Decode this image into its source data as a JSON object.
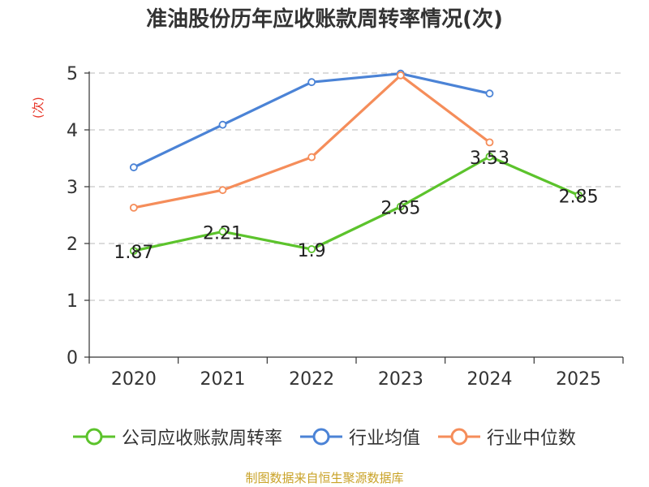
{
  "chart_data": {
    "type": "line",
    "title": "准油股份历年应收账款周转率情况(次)",
    "ylabel": "(次)",
    "xlabel": "",
    "categories": [
      "2020",
      "2021",
      "2022",
      "2023",
      "2024",
      "2025"
    ],
    "ylim": [
      0,
      5
    ],
    "yticks": [
      "0",
      "1",
      "2",
      "3",
      "4",
      "5"
    ],
    "grid": true,
    "legend_position": "bottom",
    "series": [
      {
        "name": "公司应收账款周转率",
        "color": "#5cc32c",
        "values": [
          1.87,
          2.21,
          1.9,
          2.65,
          3.53,
          2.85
        ],
        "labels": [
          "1.87",
          "2.21",
          "1.9",
          "2.65",
          "3.53",
          "2.85"
        ]
      },
      {
        "name": "行业均值",
        "color": "#4b83d6",
        "values": [
          3.34,
          4.09,
          4.84,
          4.99,
          4.64,
          null
        ]
      },
      {
        "name": "行业中位数",
        "color": "#f58d5a",
        "values": [
          2.63,
          2.94,
          3.52,
          4.96,
          3.78,
          null
        ]
      }
    ]
  },
  "source": "制图数据来自恒生聚源数据库"
}
